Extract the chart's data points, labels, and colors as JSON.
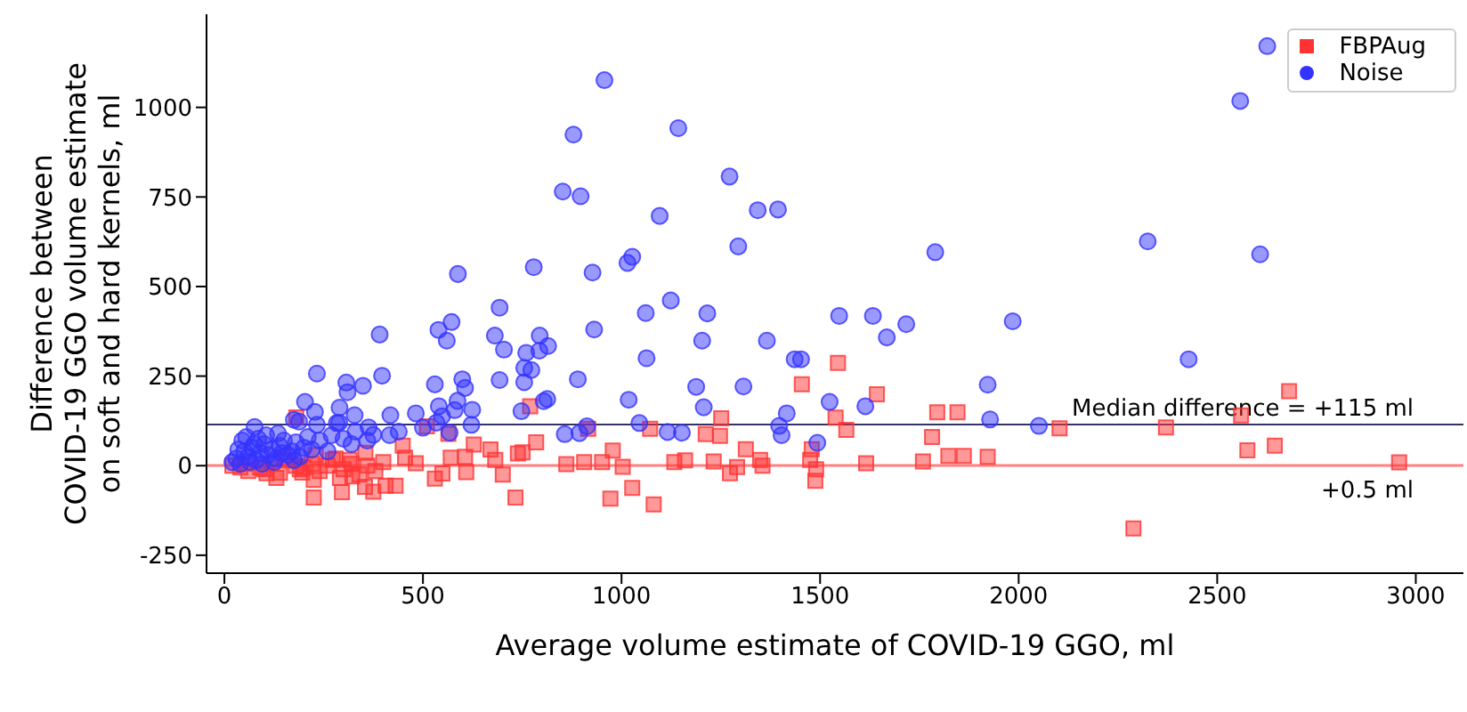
{
  "chart_data": {
    "type": "scatter",
    "xlabel": "Average volume estimate of COVID-19 GGO, ml",
    "ylabel": "Difference between\nCOVID-19 GGO volume estimate\non soft and hard kernels, ml",
    "xlim": [
      -45,
      3120
    ],
    "ylim": [
      -300,
      1260
    ],
    "xticks": [
      0,
      500,
      1000,
      1500,
      2000,
      2500,
      3000
    ],
    "yticks": [
      -250,
      0,
      250,
      500,
      750,
      1000
    ],
    "grid": false,
    "legend": "top right",
    "ref_lines": [
      {
        "axis": "y",
        "value": 115,
        "label": "Median difference = +115 ml",
        "color": "#333366"
      },
      {
        "axis": "y",
        "value": 0.5,
        "label": "+0.5 ml",
        "color": "#ff8080"
      }
    ],
    "series": [
      {
        "name": "FBPAug",
        "color": "#ff3333",
        "marker": "square",
        "x": [
          1454,
          1251,
          1545,
          1643,
          1539,
          1566,
          1795,
          1846,
          1782,
          1823,
          1862,
          1922,
          1759,
          1616,
          2103,
          2371,
          2289,
          2560,
          2576,
          2645,
          2681,
          2958,
          1081,
          972,
          1027,
          1488,
          1072,
          785,
          770,
          916,
          1212,
          1248,
          1313,
          1479,
          1349,
          1475,
          1490,
          564,
          510,
          449,
          355,
          181,
          733,
          739,
          751,
          978,
          628,
          670,
          701,
          530,
          549,
          570,
          606,
          609,
          682,
          861,
          906,
          951,
          1003,
          1133,
          1160,
          1232,
          1291,
          1273,
          1355,
          225,
          296,
          375,
          354,
          406,
          431,
          225,
          131,
          322,
          291,
          455,
          482,
          315,
          273,
          196,
          106,
          20,
          40,
          60,
          80,
          100,
          120,
          140,
          160,
          180,
          200,
          220,
          240,
          260,
          280,
          300,
          320,
          340,
          360,
          380,
          400,
          50,
          90,
          150,
          190,
          230
        ],
        "values": [
          227,
          132,
          287,
          199,
          134,
          100,
          149,
          149,
          80,
          27,
          27,
          25,
          12,
          7,
          104,
          107,
          -175,
          140,
          43,
          56,
          208,
          9,
          -108,
          -92,
          -62,
          -42,
          103,
          65,
          166,
          103,
          88,
          83,
          46,
          46,
          16,
          16,
          -10,
          89,
          110,
          56,
          36,
          135,
          -89,
          34,
          37,
          42,
          59,
          45,
          -25,
          -36,
          -22,
          22,
          25,
          -18,
          16,
          4,
          10,
          10,
          -3,
          10,
          15,
          12,
          -4,
          -21,
          0,
          -89,
          -74,
          -73,
          -59,
          -56,
          -56,
          -40,
          -34,
          -30,
          -34,
          22,
          7,
          16,
          16,
          -19,
          -21,
          0,
          -5,
          -15,
          null,
          -10,
          5,
          -20,
          15,
          0,
          -5,
          5,
          -15,
          0,
          20,
          -10,
          5,
          -25,
          0,
          -15,
          10,
          5,
          -5,
          25,
          -10,
          30
        ]
      },
      {
        "name": "Noise",
        "color": "#3333ff",
        "marker": "circle",
        "x": [
          957,
          1143,
          879,
          1272,
          852,
          897,
          1343,
          1394,
          1096,
          1294,
          1027,
          1015,
          779,
          588,
          927,
          693,
          1124,
          1061,
          1216,
          572,
          539,
          931,
          391,
          681,
          794,
          560,
          1203,
          1366,
          815,
          704,
          793,
          760,
          1436,
          1452,
          1063,
          755,
          773,
          233,
          397,
          599,
          890,
          693,
          755,
          307,
          349,
          530,
          1307,
          1188,
          606,
          310,
          587,
          813,
          804,
          1018,
          540,
          203,
          290,
          748,
          328,
          482,
          418,
          228,
          1207,
          1416,
          1524,
          624,
          283,
          548,
          580,
          175,
          188,
          233,
          76,
          289,
          363,
          375,
          416,
          439,
          500,
          622,
          534,
          567,
          913,
          1045,
          857,
          894,
          1116,
          1152,
          1397,
          1403,
          1493,
          2626,
          2558,
          2325,
          1790,
          2608,
          1548,
          1633,
          1717,
          1985,
          1668,
          2428,
          1922,
          1614,
          1928,
          2051,
          20,
          30,
          40,
          50,
          60,
          70,
          80,
          90,
          100,
          110,
          120,
          130,
          140,
          150,
          160,
          170,
          180,
          190,
          200,
          210,
          220,
          240,
          260,
          270,
          300,
          320,
          330,
          360,
          45,
          55,
          65,
          85,
          95,
          105,
          125,
          135,
          145,
          175,
          35,
          75
        ],
        "values": [
          1076,
          942,
          924,
          807,
          765,
          752,
          713,
          715,
          697,
          612,
          583,
          566,
          554,
          535,
          539,
          441,
          461,
          426,
          425,
          401,
          379,
          380,
          366,
          363,
          363,
          349,
          349,
          349,
          334,
          324,
          321,
          315,
          297,
          297,
          300,
          273,
          267,
          257,
          251,
          241,
          241,
          239,
          233,
          232,
          223,
          227,
          221,
          220,
          217,
          205,
          181,
          186,
          180,
          184,
          166,
          178,
          162,
          152,
          141,
          146,
          141,
          150,
          163,
          146,
          178,
          156,
          119,
          138,
          155,
          128,
          123,
          114,
          108,
          120,
          107,
          86,
          85,
          95,
          106,
          114,
          120,
          92,
          110,
          119,
          88,
          91,
          94,
          92,
          111,
          85,
          64,
          1171,
          1018,
          626,
          596,
          590,
          418,
          418,
          395,
          403,
          358,
          297,
          226,
          166,
          129,
          111,
          10,
          20,
          5,
          40,
          25,
          50,
          15,
          35,
          60,
          30,
          45,
          20,
          55,
          70,
          30,
          40,
          65,
          25,
          50,
          80,
          45,
          70,
          40,
          85,
          75,
          60,
          95,
          70,
          70,
          80,
          10,
          75,
          5,
          85,
          10,
          90,
          35,
          15,
          45,
          60
        ]
      }
    ]
  }
}
